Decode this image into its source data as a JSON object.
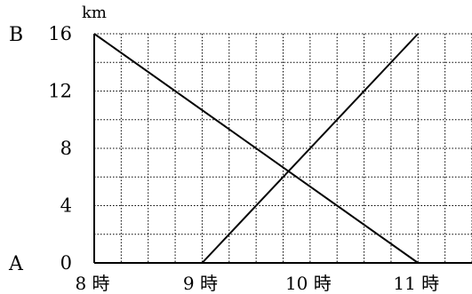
{
  "chart_data": {
    "type": "line",
    "title": "",
    "xlabel": "",
    "ylabel": "km",
    "y_unit": "km",
    "x_ticks": [
      "8 時",
      "9 時",
      "10 時",
      "11 時"
    ],
    "y_ticks": [
      "0",
      "4",
      "8",
      "12",
      "16"
    ],
    "xlim": [
      8,
      11.5
    ],
    "ylim": [
      0,
      16
    ],
    "grid": true,
    "grid_style": "dotted",
    "endpoint_labels": {
      "bottom": "A",
      "top": "B"
    },
    "series": [
      {
        "x": [
          8,
          11
        ],
        "y": [
          16,
          0
        ]
      },
      {
        "x": [
          9,
          11
        ],
        "y": [
          0,
          16
        ]
      }
    ]
  }
}
